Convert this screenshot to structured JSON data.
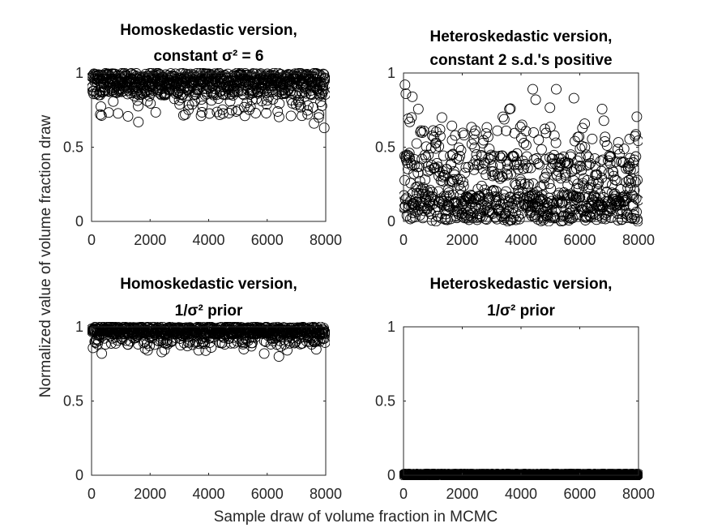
{
  "figure": {
    "ylabel": "Normalized value of volume fraction draw",
    "xlabel": "Sample draw of volume fraction in MCMC"
  },
  "chart_data": [
    {
      "type": "scatter",
      "title_lines": [
        "Homoskedastic version,",
        "constant σ² = 6"
      ],
      "xlim": [
        0,
        8000
      ],
      "ylim": [
        0,
        1
      ],
      "x_ticks": [
        0,
        2000,
        4000,
        6000,
        8000
      ],
      "y_ticks": [
        0,
        0.5,
        1
      ],
      "marker": "open-circle",
      "color": "#000000",
      "distribution": {
        "n": 8000,
        "typical_min": 0.85,
        "max": 1.0,
        "outliers_min": 0.63
      },
      "notable_points": [
        [
          1600,
          0.67
        ],
        [
          7600,
          0.66
        ],
        [
          7950,
          0.63
        ],
        [
          300,
          0.72
        ],
        [
          3200,
          0.72
        ]
      ]
    },
    {
      "type": "scatter",
      "title_lines": [
        "Heteroskedastic version,",
        "constant 2 s.d.'s positive"
      ],
      "xlim": [
        0,
        8000
      ],
      "ylim": [
        0,
        1
      ],
      "x_ticks": [
        0,
        2000,
        4000,
        6000,
        8000
      ],
      "y_ticks": [
        0,
        0.5,
        1
      ],
      "marker": "open-circle",
      "color": "#000000",
      "distribution": {
        "n": 8000,
        "typical_min": 0.0,
        "typical_max": 0.6,
        "max": 0.92
      },
      "notable_points": [
        [
          50,
          0.92
        ],
        [
          80,
          0.86
        ],
        [
          300,
          0.84
        ],
        [
          4400,
          0.89
        ],
        [
          5200,
          0.89
        ],
        [
          4500,
          0.82
        ],
        [
          5800,
          0.83
        ]
      ]
    },
    {
      "type": "scatter",
      "title_lines": [
        "Homoskedastic version,",
        "1/σ² prior"
      ],
      "xlim": [
        0,
        8000
      ],
      "ylim": [
        0,
        1
      ],
      "x_ticks": [
        0,
        2000,
        4000,
        6000,
        8000
      ],
      "y_ticks": [
        0,
        0.5,
        1
      ],
      "marker": "open-circle",
      "color": "#000000",
      "distribution": {
        "n": 8000,
        "typical_min": 0.9,
        "max": 1.0,
        "outliers_min": 0.8
      },
      "notable_points": [
        [
          350,
          0.82
        ],
        [
          2400,
          0.83
        ],
        [
          3900,
          0.84
        ],
        [
          5200,
          0.85
        ],
        [
          5900,
          0.82
        ],
        [
          6400,
          0.8
        ]
      ]
    },
    {
      "type": "scatter",
      "title_lines": [
        "Heteroskedastic version,",
        "1/σ² prior"
      ],
      "xlim": [
        0,
        8000
      ],
      "ylim": [
        0,
        1
      ],
      "x_ticks": [
        0,
        2000,
        4000,
        6000,
        8000
      ],
      "y_ticks": [
        0,
        0.5,
        1
      ],
      "marker": "open-circle",
      "color": "#000000",
      "distribution": {
        "n": 8000,
        "typical_min": 0.0,
        "max": 0.01
      },
      "notable_points": []
    }
  ]
}
